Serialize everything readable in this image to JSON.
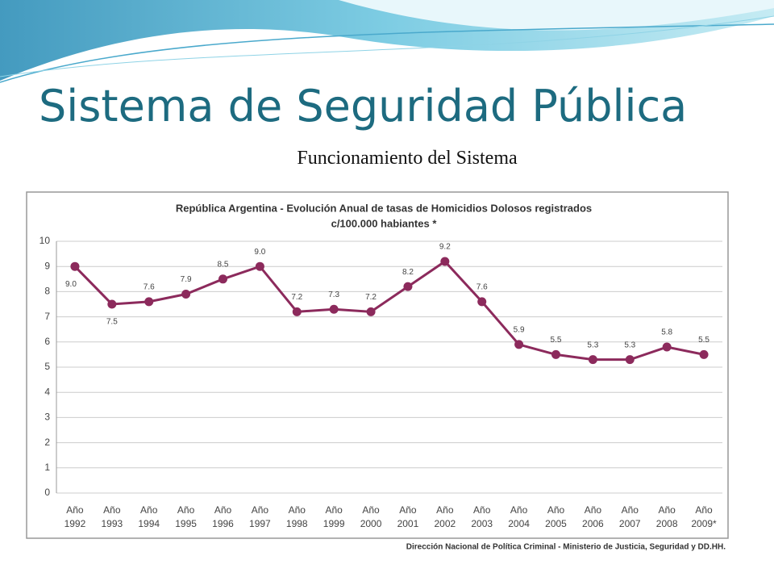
{
  "slide": {
    "title": "Sistema de Seguridad Pública",
    "subtitle": "Funcionamiento del Sistema"
  },
  "chart_data": {
    "type": "line",
    "title": "República Argentina - Evolución Anual de tasas de Homicidios Dolosos registrados",
    "subtitle": "c/100.000 habiantes *",
    "source": "Dirección Nacional de Política Criminal - Ministerio de Justicia, Seguridad y DD.HH.",
    "categories": [
      "Año 1992",
      "Año 1993",
      "Año 1994",
      "Año 1995",
      "Año 1996",
      "Año 1997",
      "Año 1998",
      "Año 1999",
      "Año 2000",
      "Año 2001",
      "Año 2002",
      "Año 2003",
      "Año 2004",
      "Año 2005",
      "Año 2006",
      "Año 2007",
      "Año 2008",
      "Año 2009*"
    ],
    "values": [
      9.0,
      7.5,
      7.6,
      7.9,
      8.5,
      9.0,
      7.2,
      7.3,
      7.2,
      8.2,
      9.2,
      7.6,
      5.9,
      5.5,
      5.3,
      5.3,
      5.8,
      5.5
    ],
    "value_labels": [
      "9.0",
      "7.5",
      "7.6",
      "7.9",
      "8.5",
      "9.0",
      "7.2",
      "7.3",
      "7.2",
      "8.2",
      "9.2",
      "7.6",
      "5.9",
      "5.5",
      "5.3",
      "5.3",
      "5.8",
      "5.5"
    ],
    "color": "#8c2a5c",
    "ylim": [
      0,
      10
    ],
    "yticks": [
      0,
      1,
      2,
      3,
      4,
      5,
      6,
      7,
      8,
      9,
      10
    ],
    "grid": true
  }
}
